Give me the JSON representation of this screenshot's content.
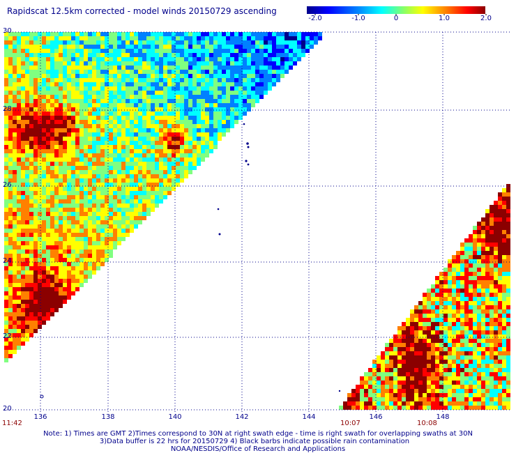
{
  "header": {
    "title": "Rapidscat 12.5km corrected - model winds 20150729 ascending"
  },
  "colorbar": {
    "ticks": [
      "-2.0",
      "-1.0",
      "0",
      "1.0",
      "2.0"
    ],
    "colors": [
      "#00008b",
      "#0000ff",
      "#0080ff",
      "#00ffff",
      "#80ff80",
      "#ffff00",
      "#ff8000",
      "#ff0000",
      "#8b0000"
    ]
  },
  "map": {
    "lat_labels": [
      "30",
      "28",
      "26",
      "24",
      "22",
      "20"
    ],
    "lon_labels": [
      "136",
      "138",
      "140",
      "142",
      "144",
      "146",
      "148"
    ],
    "time_labels": {
      "left": "11:42",
      "mid": "10:07",
      "right": "10:08"
    },
    "grid_color": "#00008b",
    "land_color": "#00008b"
  },
  "footer": {
    "line1": "Note: 1) Times are GMT 2)Times correspond to 30N at right swath edge - time is right swath for overlapping swaths at 30N",
    "line2": "3)Data buffer is 22 hrs for 20150729 4) Black barbs indicate possible rain contamination",
    "line3": "NOAA/NESDIS/Office of Research and Applications"
  }
}
